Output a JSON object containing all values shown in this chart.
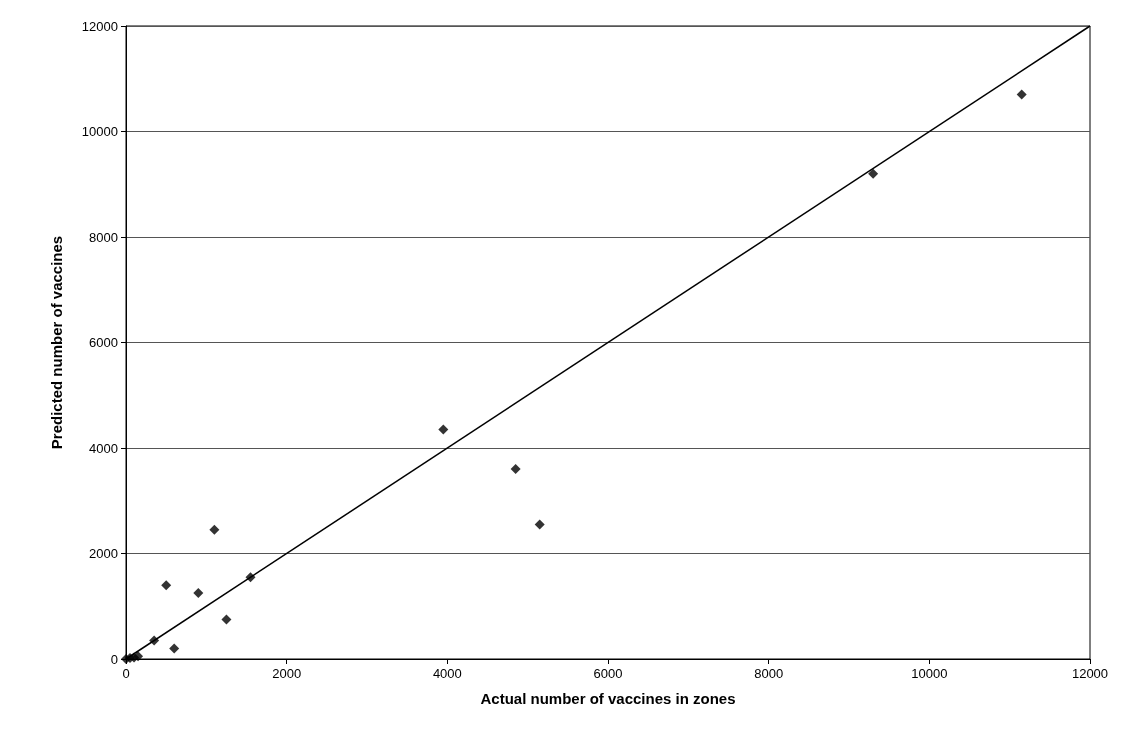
{
  "chart_data": {
    "type": "scatter",
    "xlabel": "Actual number of vaccines in zones",
    "ylabel": "Predicted number of vaccines",
    "xlim": [
      0,
      12000
    ],
    "xticks": [
      0,
      2000,
      4000,
      6000,
      8000,
      10000,
      12000
    ],
    "ylim": [
      0,
      12000
    ],
    "yticks": [
      0,
      2000,
      4000,
      6000,
      8000,
      10000,
      12000
    ],
    "grid": "y",
    "series": [
      {
        "marker": "diamond",
        "color": "#000000",
        "x": [
          0,
          50,
          100,
          150,
          350,
          500,
          600,
          900,
          1100,
          1250,
          1550,
          3950,
          4850,
          5150,
          9300,
          11150
        ],
        "values": [
          0,
          20,
          30,
          50,
          350,
          1400,
          200,
          1250,
          2450,
          750,
          1550,
          4350,
          3600,
          2550,
          9200,
          10700
        ]
      },
      {
        "type": "line",
        "color": "#000000",
        "x": [
          0,
          12000
        ],
        "values": [
          0,
          12000
        ]
      }
    ]
  }
}
